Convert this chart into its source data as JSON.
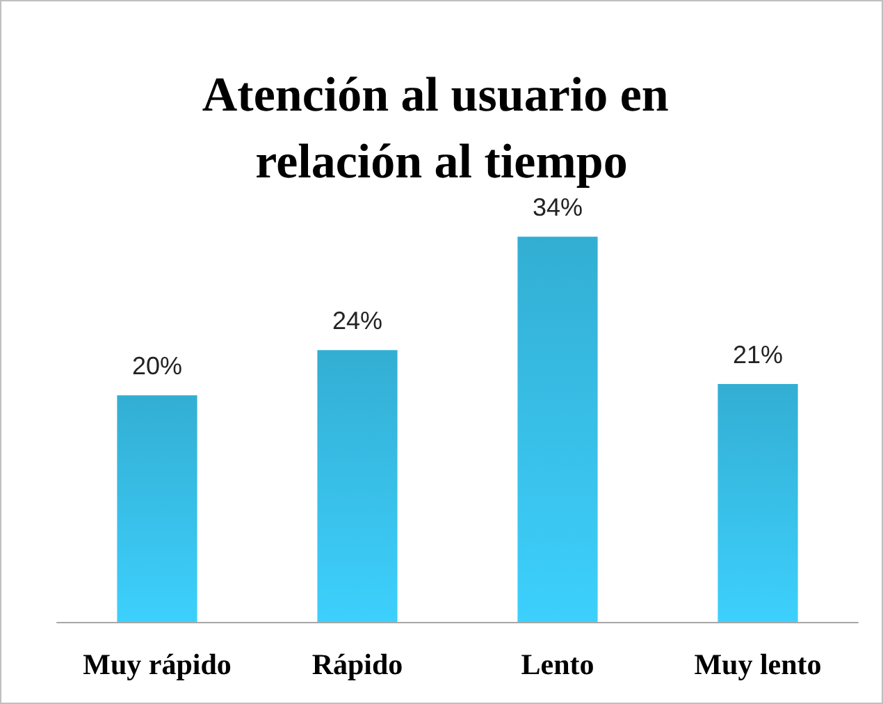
{
  "chart_data": {
    "type": "bar",
    "title": "Atención al usuario en relación al tiempo",
    "categories": [
      "Muy rápido",
      "Rápido",
      "Lento",
      "Muy lento"
    ],
    "values": [
      20,
      24,
      34,
      21
    ],
    "value_labels": [
      "20%",
      "24%",
      "34%",
      "21%"
    ],
    "color": "#33aed3",
    "tick_labels": "x"
  }
}
